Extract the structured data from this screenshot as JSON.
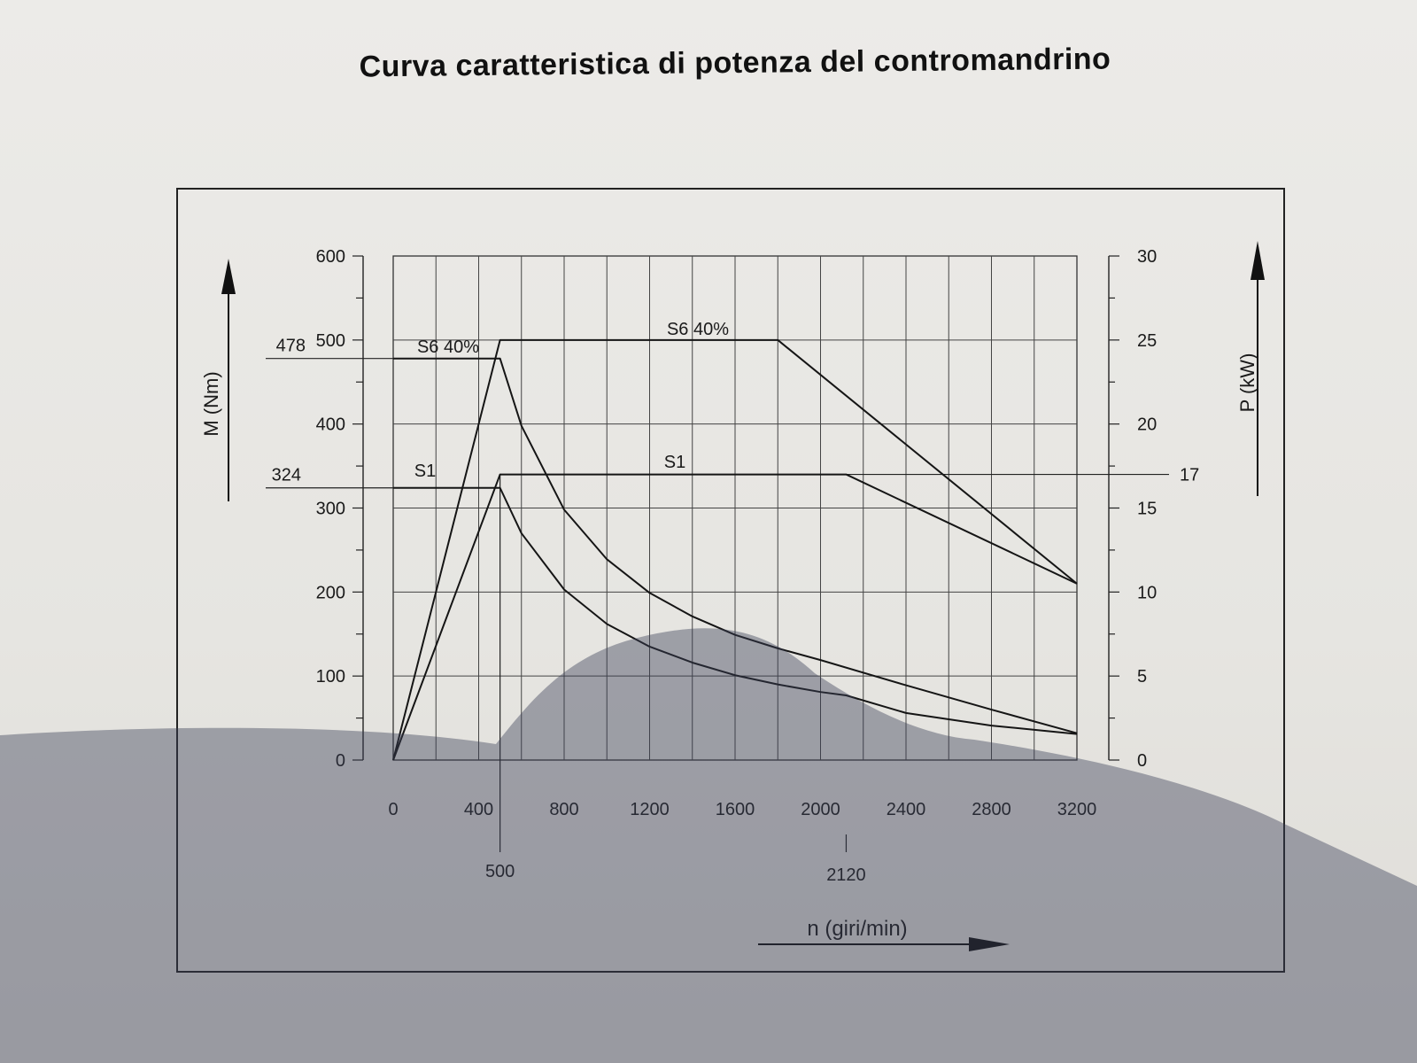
{
  "title": "Curva caratteristica di potenza del contromandrino",
  "chart_data": {
    "type": "line",
    "title": "Curva caratteristica di potenza del contromandrino",
    "xlabel": "n (giri/min)",
    "ylabel_left": "M (Nm)",
    "ylabel_right": "P (kW)",
    "x_ticks": [
      0,
      400,
      800,
      1200,
      1600,
      2000,
      2400,
      2800,
      3200
    ],
    "x_special_ticks": [
      500,
      2120
    ],
    "y_left_ticks": [
      0,
      100,
      200,
      300,
      400,
      500,
      600
    ],
    "y_left_special": [
      478,
      324
    ],
    "y_right_ticks": [
      0,
      5,
      10,
      15,
      20,
      25,
      30
    ],
    "y_right_special": [
      17
    ],
    "xlim": [
      0,
      3200
    ],
    "ylim_left": [
      0,
      600
    ],
    "ylim_right": [
      0,
      30
    ],
    "grid": true,
    "series": [
      {
        "name": "S6 40%",
        "axis": "right",
        "kind": "power",
        "x": [
          0,
          500,
          1800,
          3200
        ],
        "y": [
          0,
          25,
          25,
          10.5
        ]
      },
      {
        "name": "S1",
        "axis": "right",
        "kind": "power",
        "x": [
          0,
          500,
          2120,
          3200
        ],
        "y": [
          0,
          17,
          17,
          10.5
        ]
      },
      {
        "name": "S6 40%",
        "axis": "left",
        "kind": "torque",
        "x": [
          0,
          500,
          600,
          800,
          1000,
          1200,
          1400,
          1600,
          1800,
          2000,
          2400,
          2800,
          3200
        ],
        "y": [
          478,
          478,
          398,
          298,
          239,
          199,
          171,
          149,
          133,
          119,
          89,
          60,
          32
        ]
      },
      {
        "name": "S1",
        "axis": "left",
        "kind": "torque",
        "x": [
          0,
          500,
          600,
          800,
          1000,
          1200,
          1400,
          1600,
          1800,
          2000,
          2120,
          2400,
          2800,
          3200
        ],
        "y": [
          324,
          324,
          270,
          203,
          162,
          135,
          116,
          101,
          90,
          81,
          77,
          56,
          41,
          31
        ]
      }
    ]
  }
}
